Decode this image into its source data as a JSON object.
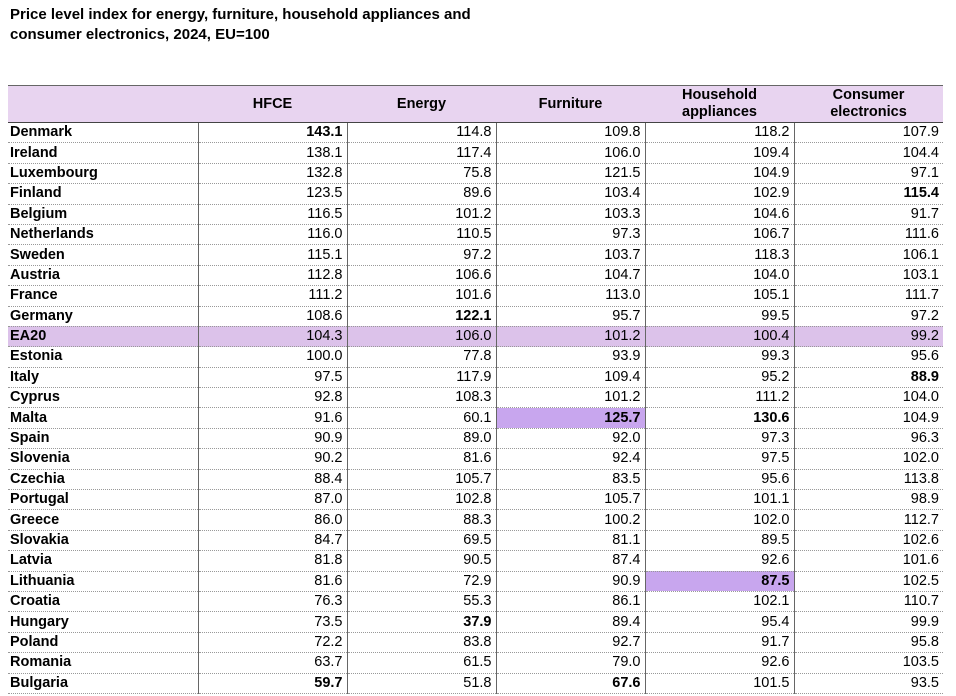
{
  "title": "Price level index for energy, furniture, household appliances and consumer electronics, 2024, EU=100",
  "table": {
    "header_color": "#e8d4f0",
    "row_highlight_color": "#dcc2ea",
    "cell_highlight_color": "#c8a6ee",
    "columns": [
      "HFCE",
      "Energy",
      "Furniture",
      "Household appliances",
      "Consumer electronics"
    ],
    "rows": [
      {
        "label": "Denmark",
        "values": [
          "143.1",
          "114.8",
          "109.8",
          "118.2",
          "107.9"
        ],
        "bold": [
          0
        ]
      },
      {
        "label": "Ireland",
        "values": [
          "138.1",
          "117.4",
          "106.0",
          "109.4",
          "104.4"
        ]
      },
      {
        "label": "Luxembourg",
        "values": [
          "132.8",
          "75.8",
          "121.5",
          "104.9",
          "97.1"
        ]
      },
      {
        "label": "Finland",
        "values": [
          "123.5",
          "89.6",
          "103.4",
          "102.9",
          "115.4"
        ],
        "bold": [
          4
        ]
      },
      {
        "label": "Belgium",
        "values": [
          "116.5",
          "101.2",
          "103.3",
          "104.6",
          "91.7"
        ]
      },
      {
        "label": "Netherlands",
        "values": [
          "116.0",
          "110.5",
          "97.3",
          "106.7",
          "111.6"
        ]
      },
      {
        "label": "Sweden",
        "values": [
          "115.1",
          "97.2",
          "103.7",
          "118.3",
          "106.1"
        ]
      },
      {
        "label": "Austria",
        "values": [
          "112.8",
          "106.6",
          "104.7",
          "104.0",
          "103.1"
        ]
      },
      {
        "label": "France",
        "values": [
          "111.2",
          "101.6",
          "113.0",
          "105.1",
          "111.7"
        ]
      },
      {
        "label": "Germany",
        "values": [
          "108.6",
          "122.1",
          "95.7",
          "99.5",
          "97.2"
        ],
        "bold": [
          1
        ]
      },
      {
        "label": "EA20",
        "values": [
          "104.3",
          "106.0",
          "101.2",
          "100.4",
          "99.2"
        ],
        "highlight_row": true
      },
      {
        "label": "Estonia",
        "values": [
          "100.0",
          "77.8",
          "93.9",
          "99.3",
          "95.6"
        ]
      },
      {
        "label": "Italy",
        "values": [
          "97.5",
          "117.9",
          "109.4",
          "95.2",
          "88.9"
        ],
        "bold": [
          4
        ]
      },
      {
        "label": "Cyprus",
        "values": [
          "92.8",
          "108.3",
          "101.2",
          "111.2",
          "104.0"
        ]
      },
      {
        "label": "Malta",
        "values": [
          "91.6",
          "60.1",
          "125.7",
          "130.6",
          "104.9"
        ],
        "bold": [
          2,
          3
        ],
        "highlight": [
          2
        ]
      },
      {
        "label": "Spain",
        "values": [
          "90.9",
          "89.0",
          "92.0",
          "97.3",
          "96.3"
        ]
      },
      {
        "label": "Slovenia",
        "values": [
          "90.2",
          "81.6",
          "92.4",
          "97.5",
          "102.0"
        ]
      },
      {
        "label": "Czechia",
        "values": [
          "88.4",
          "105.7",
          "83.5",
          "95.6",
          "113.8"
        ]
      },
      {
        "label": "Portugal",
        "values": [
          "87.0",
          "102.8",
          "105.7",
          "101.1",
          "98.9"
        ]
      },
      {
        "label": "Greece",
        "values": [
          "86.0",
          "88.3",
          "100.2",
          "102.0",
          "112.7"
        ]
      },
      {
        "label": "Slovakia",
        "values": [
          "84.7",
          "69.5",
          "81.1",
          "89.5",
          "102.6"
        ]
      },
      {
        "label": "Latvia",
        "values": [
          "81.8",
          "90.5",
          "87.4",
          "92.6",
          "101.6"
        ]
      },
      {
        "label": "Lithuania",
        "values": [
          "81.6",
          "72.9",
          "90.9",
          "87.5",
          "102.5"
        ],
        "bold": [
          3
        ],
        "highlight": [
          3
        ]
      },
      {
        "label": "Croatia",
        "values": [
          "76.3",
          "55.3",
          "86.1",
          "102.1",
          "110.7"
        ]
      },
      {
        "label": "Hungary",
        "values": [
          "73.5",
          "37.9",
          "89.4",
          "95.4",
          "99.9"
        ],
        "bold": [
          1
        ]
      },
      {
        "label": "Poland",
        "values": [
          "72.2",
          "83.8",
          "92.7",
          "91.7",
          "95.8"
        ]
      },
      {
        "label": "Romania",
        "values": [
          "63.7",
          "61.5",
          "79.0",
          "92.6",
          "103.5"
        ]
      },
      {
        "label": "Bulgaria",
        "values": [
          "59.7",
          "51.8",
          "67.6",
          "101.5",
          "93.5"
        ],
        "bold": [
          0,
          2
        ]
      }
    ]
  }
}
